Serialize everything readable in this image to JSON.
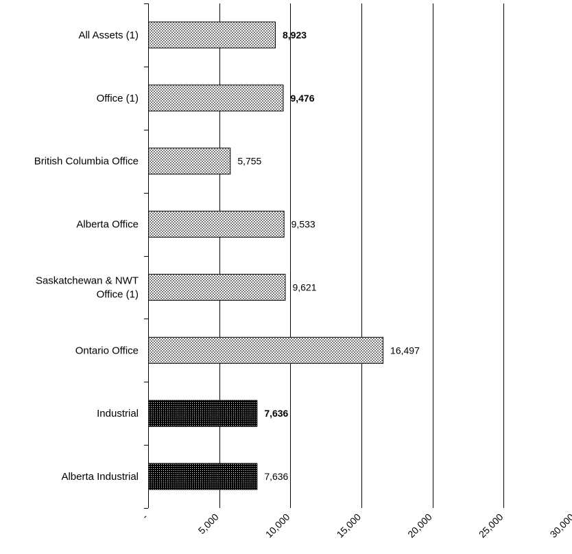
{
  "chart_data": {
    "type": "bar",
    "orientation": "horizontal",
    "title": "",
    "xlabel": "",
    "ylabel": "",
    "xlim": [
      0,
      30000
    ],
    "x_ticks": [
      0,
      5000,
      10000,
      15000,
      20000,
      25000,
      30000
    ],
    "x_tick_labels": [
      "-",
      "5,000",
      "10,000",
      "15,000",
      "20,000",
      "25,000",
      "30,000"
    ],
    "grid": "vertical",
    "legend": "none",
    "categories": [
      "All Assets (1)",
      "Office (1)",
      "British Columbia Office",
      "Alberta Office",
      "Saskatchewan & NWT Office (1)",
      "Ontario Office",
      "Industrial",
      "Alberta Industrial"
    ],
    "values": [
      8923,
      9476,
      5755,
      9533,
      9621,
      16497,
      7636,
      7636
    ],
    "value_labels": [
      "8,923",
      "9,476",
      "5,755",
      "9,533",
      "9,621",
      "16,497",
      "7,636",
      "7,636"
    ],
    "bold_labels": [
      true,
      true,
      false,
      false,
      false,
      false,
      true,
      false
    ],
    "bar_styles": [
      "light",
      "light",
      "light",
      "light",
      "light",
      "light",
      "dark",
      "dark"
    ],
    "colors": {
      "light": "#c8c8c8",
      "dark": "#1a1a1a",
      "grid": "#000000"
    }
  }
}
